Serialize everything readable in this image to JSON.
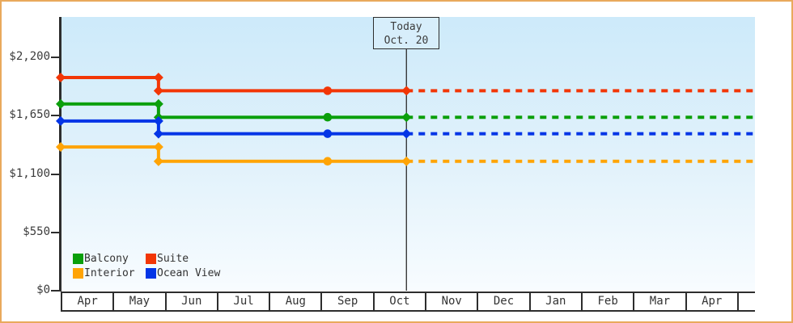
{
  "window": {
    "frame_border_color": "#e9a95c",
    "axis_color": "#2d2d2d",
    "text_color": "#3c3c3c",
    "plot_background": {
      "top": "#cdeafa",
      "mid": "#e2f2fb",
      "bottom": "#f8fcff"
    },
    "today_box_fill": "#d7eefb"
  },
  "chart_data": {
    "type": "line",
    "subtype": "step-line-price-history",
    "title": "",
    "y_axis": {
      "ticks": [
        {
          "value": 0,
          "label": "$0"
        },
        {
          "value": 550,
          "label": "$550"
        },
        {
          "value": 1100,
          "label": "$1,100"
        },
        {
          "value": 1650,
          "label": "$1,650"
        },
        {
          "value": 2200,
          "label": "$2,200"
        }
      ],
      "range_top_value": 2575,
      "grid": "off"
    },
    "x_axis": {
      "months": [
        "Apr",
        "May",
        "Jun",
        "Jul",
        "Aug",
        "Sep",
        "Oct",
        "Nov",
        "Dec",
        "Jan",
        "Feb",
        "Mar",
        "Apr"
      ],
      "trailing_cell_label": ""
    },
    "today_marker": {
      "title": "Today",
      "date": "Oct. 20",
      "month_frac": 6.645
    },
    "timeline": {
      "start_frac": 0,
      "price_drop_frac": 1.88,
      "checkpoint_frac": 5.13,
      "end_frac": 13.345
    },
    "series": [
      {
        "name": "Suite",
        "color": "#f23606",
        "price_before_drop": 2010,
        "price_after_drop": 1885
      },
      {
        "name": "Balcony",
        "color": "#0b9f0b",
        "price_before_drop": 1760,
        "price_after_drop": 1635
      },
      {
        "name": "Ocean View",
        "color": "#0435e6",
        "price_before_drop": 1600,
        "price_after_drop": 1480
      },
      {
        "name": "Interior",
        "color": "#ffa405",
        "price_before_drop": 1355,
        "price_after_drop": 1220
      }
    ],
    "legend": {
      "position": "bottom-left",
      "items": [
        {
          "label": "Balcony",
          "color": "#0b9f0b"
        },
        {
          "label": "Suite",
          "color": "#f23606"
        },
        {
          "label": "Interior",
          "color": "#ffa405"
        },
        {
          "label": "Ocean View",
          "color": "#0435e6"
        }
      ]
    }
  }
}
